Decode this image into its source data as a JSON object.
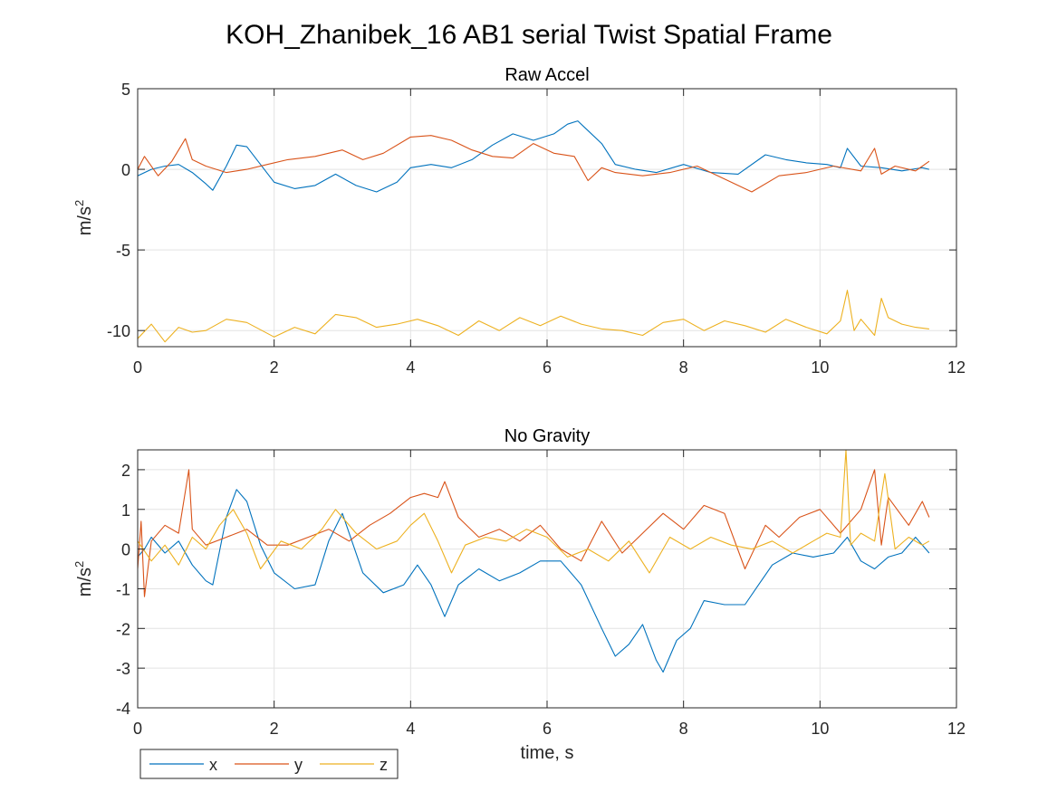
{
  "figure_title": "KOH_Zhanibek_16 AB1 serial Twist Spatial Frame",
  "chart_data": [
    {
      "type": "line",
      "title": "Raw Accel",
      "xlabel": "",
      "ylabel": "m/s",
      "ylabel_sup": "2",
      "xlim": [
        0,
        12
      ],
      "ylim": [
        -11,
        5
      ],
      "xticks": [
        0,
        2,
        4,
        6,
        8,
        10,
        12
      ],
      "yticks": [
        5,
        0,
        -5,
        -10
      ],
      "grid": true,
      "series": [
        {
          "name": "x",
          "color": "#0072BD",
          "x": [
            0,
            0.2,
            0.4,
            0.6,
            0.8,
            1.0,
            1.1,
            1.3,
            1.45,
            1.6,
            1.8,
            2.0,
            2.3,
            2.6,
            2.9,
            3.2,
            3.5,
            3.8,
            4.0,
            4.3,
            4.6,
            4.9,
            5.2,
            5.5,
            5.8,
            6.1,
            6.3,
            6.45,
            6.6,
            6.8,
            7.0,
            7.3,
            7.6,
            8.0,
            8.4,
            8.8,
            9.2,
            9.5,
            9.8,
            10.1,
            10.3,
            10.4,
            10.6,
            10.9,
            11.2,
            11.5,
            11.6
          ],
          "y": [
            -0.4,
            0.0,
            0.2,
            0.3,
            -0.2,
            -0.9,
            -1.3,
            0.2,
            1.5,
            1.4,
            0.3,
            -0.8,
            -1.2,
            -1.0,
            -0.3,
            -1.0,
            -1.4,
            -0.8,
            0.1,
            0.3,
            0.1,
            0.6,
            1.5,
            2.2,
            1.8,
            2.2,
            2.8,
            3.0,
            2.4,
            1.6,
            0.3,
            0.0,
            -0.2,
            0.3,
            -0.2,
            -0.3,
            0.9,
            0.6,
            0.4,
            0.3,
            0.1,
            1.3,
            0.2,
            0.1,
            -0.1,
            0.1,
            0.0
          ]
        },
        {
          "name": "y",
          "color": "#D95319",
          "x": [
            0,
            0.1,
            0.3,
            0.5,
            0.7,
            0.8,
            1.0,
            1.3,
            1.6,
            1.9,
            2.2,
            2.6,
            3.0,
            3.3,
            3.6,
            4.0,
            4.3,
            4.6,
            4.9,
            5.2,
            5.5,
            5.8,
            6.1,
            6.4,
            6.6,
            6.8,
            7.0,
            7.4,
            7.8,
            8.2,
            8.6,
            9.0,
            9.4,
            9.8,
            10.2,
            10.6,
            10.8,
            10.9,
            11.1,
            11.4,
            11.6
          ],
          "y": [
            0.0,
            0.8,
            -0.4,
            0.5,
            1.9,
            0.6,
            0.2,
            -0.2,
            0.0,
            0.3,
            0.6,
            0.8,
            1.2,
            0.6,
            1.0,
            2.0,
            2.1,
            1.8,
            1.2,
            0.8,
            0.7,
            1.6,
            1.0,
            0.8,
            -0.7,
            0.1,
            -0.2,
            -0.4,
            -0.2,
            0.2,
            -0.6,
            -1.4,
            -0.4,
            -0.2,
            0.2,
            -0.1,
            1.3,
            -0.3,
            0.2,
            -0.1,
            0.5
          ]
        },
        {
          "name": "z",
          "color": "#EDB120",
          "x": [
            0,
            0.2,
            0.4,
            0.6,
            0.8,
            1.0,
            1.3,
            1.6,
            2.0,
            2.3,
            2.6,
            2.9,
            3.2,
            3.5,
            3.8,
            4.1,
            4.4,
            4.7,
            5.0,
            5.3,
            5.6,
            5.9,
            6.2,
            6.5,
            6.8,
            7.1,
            7.4,
            7.7,
            8.0,
            8.3,
            8.6,
            8.9,
            9.2,
            9.5,
            9.8,
            10.1,
            10.3,
            10.4,
            10.5,
            10.6,
            10.8,
            10.9,
            11.0,
            11.2,
            11.4,
            11.6
          ],
          "y": [
            -10.5,
            -9.6,
            -10.7,
            -9.8,
            -10.1,
            -10.0,
            -9.3,
            -9.5,
            -10.4,
            -9.8,
            -10.2,
            -9.0,
            -9.2,
            -9.8,
            -9.6,
            -9.3,
            -9.7,
            -10.3,
            -9.4,
            -10.0,
            -9.2,
            -9.7,
            -9.1,
            -9.6,
            -9.9,
            -10.0,
            -10.3,
            -9.5,
            -9.3,
            -10.0,
            -9.4,
            -9.7,
            -10.1,
            -9.3,
            -9.8,
            -10.2,
            -9.4,
            -7.5,
            -10.0,
            -9.3,
            -10.3,
            -8.0,
            -9.2,
            -9.6,
            -9.8,
            -9.9
          ]
        }
      ]
    },
    {
      "type": "line",
      "title": "No Gravity",
      "xlabel": "time, s",
      "ylabel": "m/s",
      "ylabel_sup": "2",
      "xlim": [
        0,
        12
      ],
      "ylim": [
        -4,
        2.5
      ],
      "xticks": [
        0,
        2,
        4,
        6,
        8,
        10,
        12
      ],
      "yticks": [
        2,
        1,
        0,
        -1,
        -2,
        -3,
        -4
      ],
      "grid": true,
      "legend": "bottom-left, horizontal",
      "series": [
        {
          "name": "x",
          "color": "#0072BD",
          "x": [
            0,
            0.1,
            0.2,
            0.4,
            0.6,
            0.8,
            1.0,
            1.1,
            1.3,
            1.45,
            1.6,
            1.8,
            2.0,
            2.3,
            2.6,
            2.8,
            3.0,
            3.3,
            3.6,
            3.9,
            4.1,
            4.3,
            4.5,
            4.7,
            5.0,
            5.3,
            5.6,
            5.9,
            6.2,
            6.5,
            6.8,
            7.0,
            7.2,
            7.4,
            7.6,
            7.7,
            7.9,
            8.1,
            8.3,
            8.6,
            8.9,
            9.1,
            9.3,
            9.6,
            9.9,
            10.2,
            10.4,
            10.6,
            10.8,
            11.0,
            11.2,
            11.4,
            11.6
          ],
          "y": [
            -0.2,
            0.0,
            0.3,
            -0.1,
            0.2,
            -0.4,
            -0.8,
            -0.9,
            0.8,
            1.5,
            1.2,
            0.1,
            -0.6,
            -1.0,
            -0.9,
            0.2,
            0.9,
            -0.6,
            -1.1,
            -0.9,
            -0.4,
            -0.9,
            -1.7,
            -0.9,
            -0.5,
            -0.8,
            -0.6,
            -0.3,
            -0.3,
            -0.9,
            -2.0,
            -2.7,
            -2.4,
            -1.9,
            -2.8,
            -3.1,
            -2.3,
            -2.0,
            -1.3,
            -1.4,
            -1.4,
            -0.9,
            -0.4,
            -0.1,
            -0.2,
            -0.1,
            0.3,
            -0.3,
            -0.5,
            -0.2,
            -0.1,
            0.3,
            -0.1
          ]
        },
        {
          "name": "y",
          "color": "#D95319",
          "x": [
            0,
            0.05,
            0.1,
            0.2,
            0.4,
            0.6,
            0.75,
            0.8,
            1.0,
            1.3,
            1.6,
            1.9,
            2.2,
            2.5,
            2.8,
            3.1,
            3.4,
            3.7,
            4.0,
            4.2,
            4.4,
            4.5,
            4.7,
            5.0,
            5.3,
            5.6,
            5.9,
            6.2,
            6.5,
            6.8,
            7.1,
            7.4,
            7.7,
            8.0,
            8.3,
            8.6,
            8.9,
            9.2,
            9.4,
            9.7,
            10.0,
            10.3,
            10.6,
            10.8,
            10.9,
            11.0,
            11.3,
            11.5,
            11.6
          ],
          "y": [
            -0.5,
            0.7,
            -1.2,
            0.2,
            0.6,
            0.4,
            2.0,
            0.5,
            0.1,
            0.3,
            0.5,
            0.1,
            0.1,
            0.3,
            0.5,
            0.2,
            0.6,
            0.9,
            1.3,
            1.4,
            1.3,
            1.7,
            0.8,
            0.3,
            0.5,
            0.2,
            0.6,
            0.0,
            -0.3,
            0.7,
            -0.1,
            0.4,
            0.9,
            0.5,
            1.1,
            0.9,
            -0.5,
            0.6,
            0.3,
            0.8,
            1.0,
            0.4,
            1.0,
            2.0,
            0.1,
            1.3,
            0.6,
            1.2,
            0.8
          ]
        },
        {
          "name": "z",
          "color": "#EDB120",
          "x": [
            0,
            0.2,
            0.4,
            0.6,
            0.8,
            1.0,
            1.2,
            1.4,
            1.6,
            1.8,
            2.1,
            2.4,
            2.7,
            2.9,
            3.2,
            3.5,
            3.8,
            4.0,
            4.2,
            4.4,
            4.6,
            4.8,
            5.1,
            5.4,
            5.7,
            6.0,
            6.3,
            6.6,
            6.9,
            7.2,
            7.5,
            7.8,
            8.1,
            8.4,
            8.7,
            9.0,
            9.3,
            9.6,
            9.9,
            10.1,
            10.3,
            10.38,
            10.45,
            10.6,
            10.8,
            10.95,
            11.1,
            11.3,
            11.5,
            11.6
          ],
          "y": [
            0.2,
            -0.3,
            0.1,
            -0.4,
            0.3,
            0.0,
            0.6,
            1.0,
            0.4,
            -0.5,
            0.2,
            0.0,
            0.5,
            1.0,
            0.4,
            0.0,
            0.2,
            0.6,
            0.9,
            0.2,
            -0.6,
            0.1,
            0.3,
            0.2,
            0.5,
            0.3,
            -0.2,
            0.0,
            -0.3,
            0.2,
            -0.6,
            0.3,
            0.0,
            0.3,
            0.1,
            0.0,
            0.2,
            -0.1,
            0.2,
            0.4,
            0.3,
            2.5,
            0.1,
            0.4,
            0.2,
            1.9,
            0.0,
            0.3,
            0.1,
            0.2
          ]
        }
      ]
    }
  ]
}
